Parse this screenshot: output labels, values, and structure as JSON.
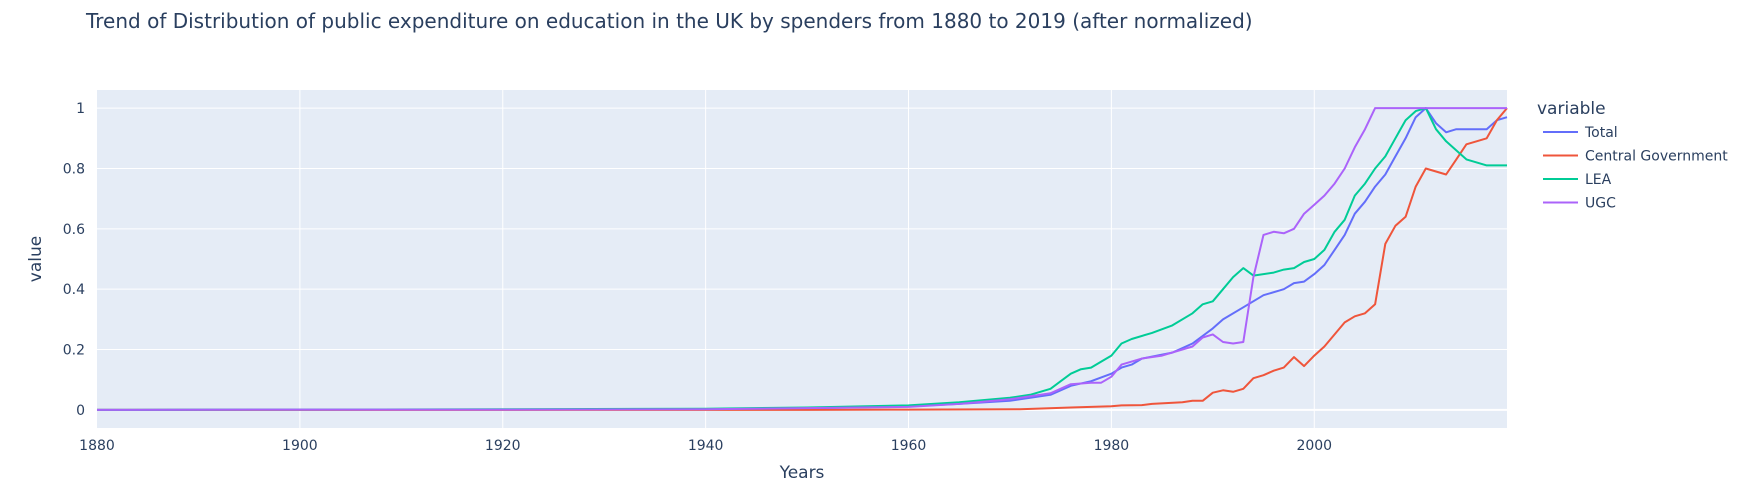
{
  "chart_data": {
    "type": "line",
    "title": "Trend of Distribution of public expenditure on education in the UK by spenders from 1880 to 2019 (after normalized)",
    "xlabel": "Years",
    "ylabel": "value",
    "xlim": [
      1880,
      2019
    ],
    "ylim": [
      -0.06,
      1.06
    ],
    "x_ticks": [
      1880,
      1900,
      1920,
      1940,
      1960,
      1980,
      2000
    ],
    "y_ticks": [
      0,
      0.2,
      0.4,
      0.6,
      0.8,
      1
    ],
    "y_tick_labels": [
      "0",
      "0.2",
      "0.4",
      "0.6",
      "0.8",
      "1"
    ],
    "grid": true,
    "legend_title": "variable",
    "legend_position": "right",
    "series": [
      {
        "name": "Total",
        "color": "#636efa",
        "points": [
          [
            1880,
            0
          ],
          [
            1900,
            0.001
          ],
          [
            1920,
            0.001
          ],
          [
            1940,
            0.002
          ],
          [
            1950,
            0.005
          ],
          [
            1960,
            0.012
          ],
          [
            1965,
            0.02
          ],
          [
            1970,
            0.03
          ],
          [
            1974,
            0.05
          ],
          [
            1976,
            0.08
          ],
          [
            1978,
            0.095
          ],
          [
            1980,
            0.12
          ],
          [
            1981,
            0.14
          ],
          [
            1982,
            0.15
          ],
          [
            1983,
            0.17
          ],
          [
            1986,
            0.19
          ],
          [
            1988,
            0.22
          ],
          [
            1990,
            0.27
          ],
          [
            1991,
            0.3
          ],
          [
            1993,
            0.34
          ],
          [
            1995,
            0.38
          ],
          [
            1997,
            0.4
          ],
          [
            1998,
            0.42
          ],
          [
            1999,
            0.425
          ],
          [
            2000,
            0.45
          ],
          [
            2001,
            0.48
          ],
          [
            2002,
            0.53
          ],
          [
            2003,
            0.58
          ],
          [
            2004,
            0.65
          ],
          [
            2005,
            0.69
          ],
          [
            2006,
            0.74
          ],
          [
            2007,
            0.78
          ],
          [
            2008,
            0.84
          ],
          [
            2009,
            0.9
          ],
          [
            2010,
            0.97
          ],
          [
            2011,
            1.0
          ],
          [
            2012,
            0.95
          ],
          [
            2013,
            0.92
          ],
          [
            2014,
            0.93
          ],
          [
            2016,
            0.93
          ],
          [
            2017,
            0.93
          ],
          [
            2018,
            0.96
          ],
          [
            2019,
            0.97
          ]
        ]
      },
      {
        "name": "Central Government",
        "color": "#ef553b",
        "points": [
          [
            1880,
            0
          ],
          [
            1920,
            0
          ],
          [
            1950,
            0
          ],
          [
            1960,
            0.001
          ],
          [
            1971,
            0.002
          ],
          [
            1976,
            0.008
          ],
          [
            1980,
            0.012
          ],
          [
            1981,
            0.015
          ],
          [
            1983,
            0.016
          ],
          [
            1984,
            0.02
          ],
          [
            1987,
            0.025
          ],
          [
            1988,
            0.03
          ],
          [
            1989,
            0.03
          ],
          [
            1990,
            0.057
          ],
          [
            1991,
            0.065
          ],
          [
            1992,
            0.06
          ],
          [
            1993,
            0.07
          ],
          [
            1994,
            0.105
          ],
          [
            1995,
            0.115
          ],
          [
            1996,
            0.13
          ],
          [
            1997,
            0.14
          ],
          [
            1998,
            0.175
          ],
          [
            1999,
            0.145
          ],
          [
            2000,
            0.18
          ],
          [
            2001,
            0.21
          ],
          [
            2002,
            0.25
          ],
          [
            2003,
            0.29
          ],
          [
            2004,
            0.31
          ],
          [
            2005,
            0.32
          ],
          [
            2006,
            0.35
          ],
          [
            2007,
            0.55
          ],
          [
            2008,
            0.61
          ],
          [
            2009,
            0.64
          ],
          [
            2010,
            0.74
          ],
          [
            2011,
            0.8
          ],
          [
            2012,
            0.79
          ],
          [
            2013,
            0.78
          ],
          [
            2014,
            0.83
          ],
          [
            2015,
            0.88
          ],
          [
            2016,
            0.89
          ],
          [
            2017,
            0.9
          ],
          [
            2018,
            0.96
          ],
          [
            2019,
            1.0
          ]
        ]
      },
      {
        "name": "LEA",
        "color": "#00cc96",
        "points": [
          [
            1880,
            0
          ],
          [
            1900,
            0.001
          ],
          [
            1920,
            0.002
          ],
          [
            1940,
            0.004
          ],
          [
            1950,
            0.008
          ],
          [
            1960,
            0.015
          ],
          [
            1965,
            0.025
          ],
          [
            1970,
            0.04
          ],
          [
            1972,
            0.05
          ],
          [
            1974,
            0.07
          ],
          [
            1975,
            0.095
          ],
          [
            1976,
            0.12
          ],
          [
            1977,
            0.135
          ],
          [
            1978,
            0.14
          ],
          [
            1979,
            0.16
          ],
          [
            1980,
            0.18
          ],
          [
            1981,
            0.22
          ],
          [
            1982,
            0.235
          ],
          [
            1984,
            0.255
          ],
          [
            1986,
            0.28
          ],
          [
            1988,
            0.32
          ],
          [
            1989,
            0.35
          ],
          [
            1990,
            0.36
          ],
          [
            1991,
            0.4
          ],
          [
            1992,
            0.44
          ],
          [
            1993,
            0.47
          ],
          [
            1994,
            0.445
          ],
          [
            1996,
            0.455
          ],
          [
            1997,
            0.465
          ],
          [
            1998,
            0.47
          ],
          [
            1999,
            0.49
          ],
          [
            2000,
            0.5
          ],
          [
            2001,
            0.53
          ],
          [
            2002,
            0.59
          ],
          [
            2003,
            0.63
          ],
          [
            2004,
            0.71
          ],
          [
            2005,
            0.75
          ],
          [
            2006,
            0.8
          ],
          [
            2007,
            0.84
          ],
          [
            2008,
            0.9
          ],
          [
            2009,
            0.96
          ],
          [
            2010,
            0.99
          ],
          [
            2011,
            1.0
          ],
          [
            2012,
            0.93
          ],
          [
            2013,
            0.89
          ],
          [
            2014,
            0.86
          ],
          [
            2015,
            0.83
          ],
          [
            2016,
            0.82
          ],
          [
            2017,
            0.81
          ],
          [
            2018,
            0.81
          ],
          [
            2019,
            0.81
          ]
        ]
      },
      {
        "name": "UGC",
        "color": "#ab63fa",
        "points": [
          [
            1880,
            0
          ],
          [
            1900,
            0.001
          ],
          [
            1920,
            0.001
          ],
          [
            1940,
            0.002
          ],
          [
            1960,
            0.01
          ],
          [
            1965,
            0.02
          ],
          [
            1970,
            0.035
          ],
          [
            1974,
            0.055
          ],
          [
            1976,
            0.085
          ],
          [
            1978,
            0.09
          ],
          [
            1979,
            0.09
          ],
          [
            1980,
            0.11
          ],
          [
            1981,
            0.15
          ],
          [
            1982,
            0.16
          ],
          [
            1983,
            0.17
          ],
          [
            1985,
            0.18
          ],
          [
            1987,
            0.2
          ],
          [
            1988,
            0.21
          ],
          [
            1989,
            0.24
          ],
          [
            1990,
            0.25
          ],
          [
            1991,
            0.225
          ],
          [
            1992,
            0.22
          ],
          [
            1993,
            0.225
          ],
          [
            1994,
            0.44
          ],
          [
            1995,
            0.58
          ],
          [
            1996,
            0.59
          ],
          [
            1997,
            0.585
          ],
          [
            1998,
            0.6
          ],
          [
            1999,
            0.65
          ],
          [
            2000,
            0.68
          ],
          [
            2001,
            0.71
          ],
          [
            2002,
            0.75
          ],
          [
            2003,
            0.8
          ],
          [
            2004,
            0.87
          ],
          [
            2005,
            0.93
          ],
          [
            2006,
            1.0
          ],
          [
            2019,
            1.0
          ]
        ]
      }
    ]
  }
}
